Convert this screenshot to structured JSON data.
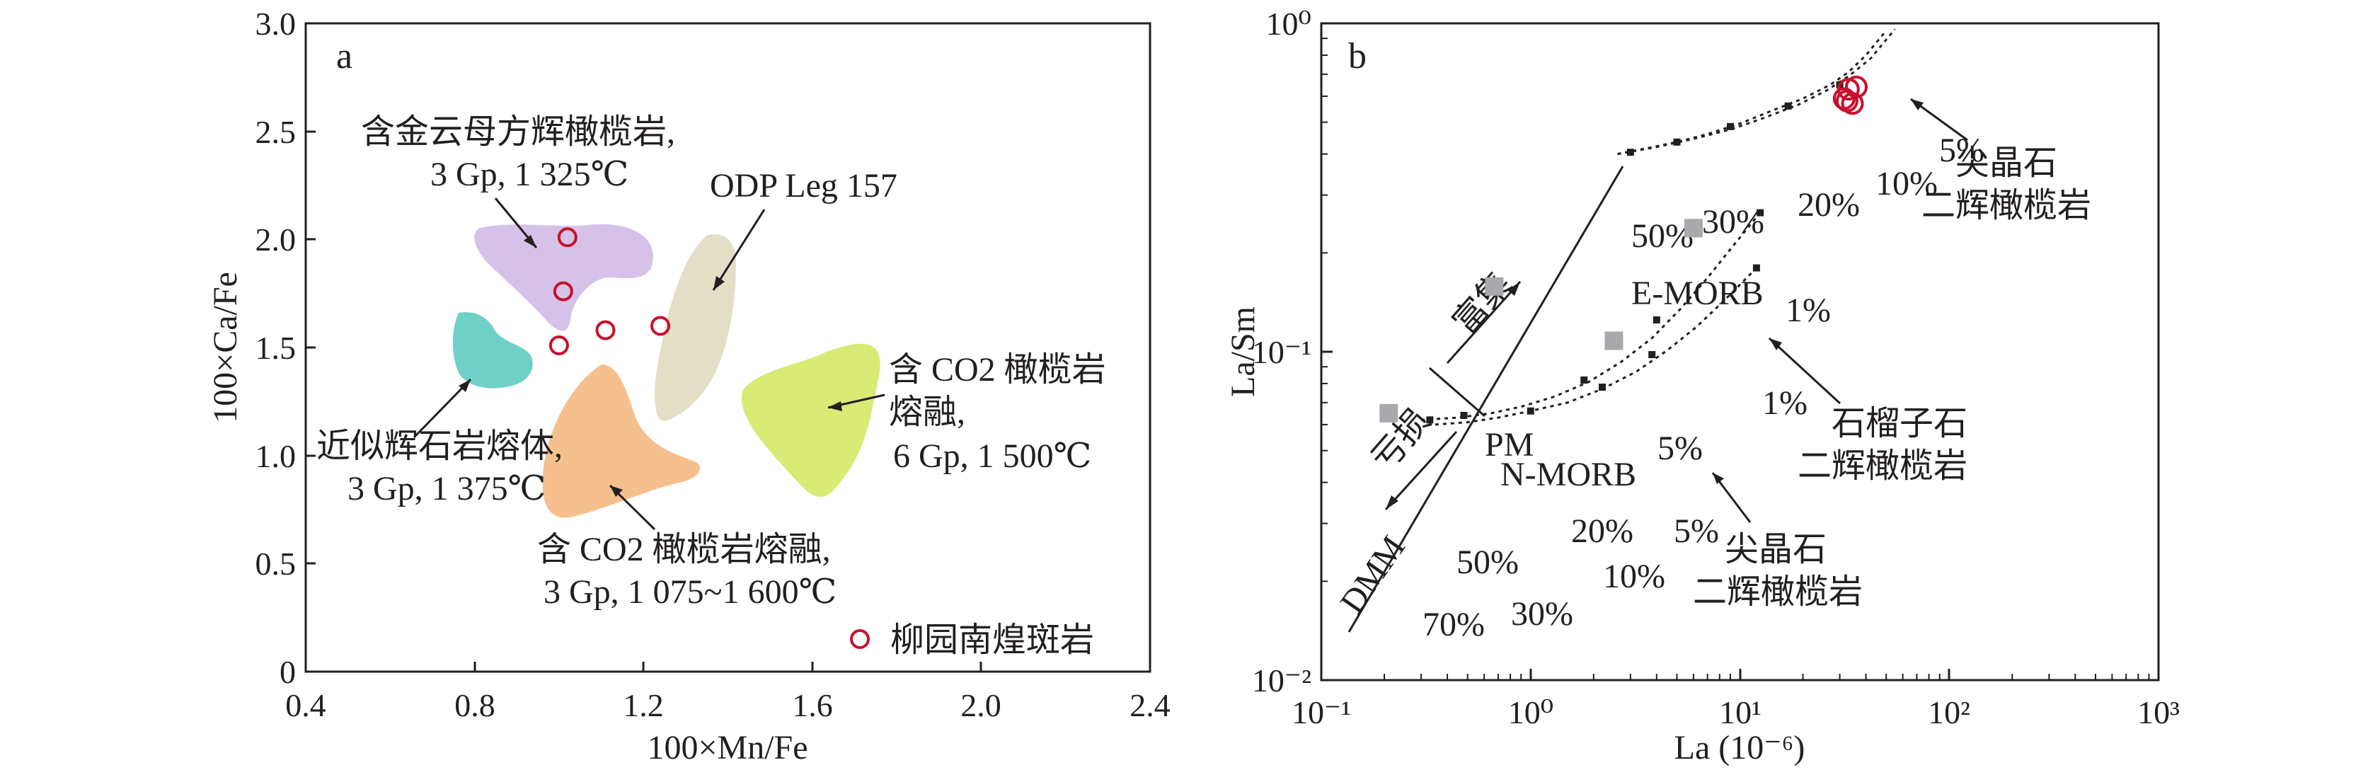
{
  "chart_data": [
    {
      "type": "scatter",
      "panel_label": "a",
      "xlabel": "100×Mn/Fe",
      "ylabel": "100×Ca/Fe",
      "xlim": [
        0.4,
        2.4
      ],
      "ylim": [
        0,
        3.0
      ],
      "x_ticks": [
        "0.4",
        "0.8",
        "1.2",
        "1.6",
        "2.0",
        "2.4"
      ],
      "y_ticks": [
        "0",
        "0.5",
        "1.0",
        "1.5",
        "2.0",
        "2.5",
        "3.0"
      ],
      "grid": false,
      "legend": {
        "label": "柳园南煌斑岩",
        "marker": "open-circle",
        "color": "#c8102e",
        "placement": "bottom-right"
      },
      "series": [
        {
          "name": "柳园南煌斑岩",
          "points": [
            [
              1.02,
              2.01
            ],
            [
              1.01,
              1.76
            ],
            [
              1.11,
              1.58
            ],
            [
              1.24,
              1.6
            ],
            [
              1.0,
              1.51
            ]
          ]
        }
      ],
      "fields": [
        {
          "label_lines": [
            "含金云母方辉橄榄岩,",
            "3 Gp, 1 325℃"
          ],
          "color": "#d6c2e8"
        },
        {
          "label_lines": [
            "ODP Leg 157"
          ],
          "color": "#e3dfc7"
        },
        {
          "label_lines": [
            "近似辉石岩熔体,",
            "3 Gp, 1 375℃"
          ],
          "color": "#6fd0c8"
        },
        {
          "label_lines": [
            "含 CO2 橄榄岩熔融,",
            "3 Gp, 1 075~1 600℃"
          ],
          "color": "#f6c08e"
        },
        {
          "label_lines": [
            "含 CO2 橄榄岩",
            "熔融,",
            "6 Gp, 1 500℃"
          ],
          "color": "#d9ea75"
        }
      ]
    },
    {
      "type": "line",
      "panel_label": "b",
      "xlabel": "La (10⁻⁶)",
      "ylabel": "La/Sm",
      "xscale": "log",
      "yscale": "log",
      "xlim": [
        0.1,
        1000
      ],
      "ylim": [
        0.01,
        1
      ],
      "x_ticks": [
        "10⁻¹",
        "10⁰",
        "10¹",
        "10²",
        "10³"
      ],
      "y_ticks": [
        "10⁻²",
        "10⁻¹",
        "10⁰"
      ],
      "grid": false,
      "reference_points": [
        {
          "label": "DMM",
          "x": 0.21,
          "y": 0.065
        },
        {
          "label": "PM",
          "x": 0.67,
          "y": 0.158
        },
        {
          "label": "N-MORB",
          "x": 2.5,
          "y": 0.108
        },
        {
          "label": "E-MORB",
          "x": 6.0,
          "y": 0.238
        }
      ],
      "samples": {
        "marker": "open-circle",
        "color": "#c8102e",
        "points": [
          [
            31.5,
            0.59
          ],
          [
            33.0,
            0.63
          ],
          [
            34.5,
            0.57
          ],
          [
            36.0,
            0.64
          ],
          [
            32.5,
            0.58
          ]
        ]
      },
      "melting_curves": [
        {
          "name": "尖晶石二辉橄榄岩 (upper)",
          "x": [
            2.6,
            3.5,
            5,
            7,
            10,
            14,
            20,
            27,
            33,
            40,
            50
          ],
          "y": [
            0.4,
            0.415,
            0.435,
            0.46,
            0.495,
            0.54,
            0.59,
            0.65,
            0.71,
            0.8,
            0.95
          ],
          "ticks": [
            [
              "50%",
              3.0,
              0.405
            ],
            [
              "30%",
              5.0,
              0.435
            ],
            [
              "20%",
              9.0,
              0.485
            ],
            [
              "10%",
              17.0,
              0.56
            ],
            [
              "5%",
              30.0,
              0.65
            ]
          ]
        },
        {
          "name": "尖晶石二辉橄榄岩 (upper, parallel)",
          "x": [
            2.6,
            4,
            6,
            9,
            13,
            19,
            26,
            33,
            42,
            55
          ],
          "y": [
            0.4,
            0.42,
            0.445,
            0.475,
            0.515,
            0.565,
            0.625,
            0.69,
            0.78,
            0.96
          ]
        },
        {
          "name": "石榴子石二辉橄榄岩",
          "x": [
            0.3,
            0.45,
            0.65,
            0.9,
            1.3,
            1.9,
            2.7,
            3.8,
            5.2,
            7.0,
            9.0,
            11.0,
            12.5
          ],
          "y": [
            0.062,
            0.063,
            0.065,
            0.068,
            0.073,
            0.081,
            0.093,
            0.11,
            0.135,
            0.168,
            0.205,
            0.24,
            0.265
          ],
          "ticks": [
            [
              "70%",
              0.33,
              0.062
            ],
            [
              "50%",
              0.48,
              0.064
            ],
            [
              "20%",
              1.8,
              0.082
            ],
            [
              "5%",
              4.0,
              0.125
            ],
            [
              "1%",
              12.5,
              0.265
            ]
          ]
        },
        {
          "name": "尖晶石二辉橄榄岩 (lower)",
          "x": [
            0.35,
            0.5,
            0.7,
            1.0,
            1.5,
            2.2,
            3.2,
            4.5,
            6.2,
            8.2,
            10.5,
            12.0
          ],
          "y": [
            0.06,
            0.061,
            0.063,
            0.066,
            0.07,
            0.077,
            0.087,
            0.101,
            0.119,
            0.141,
            0.165,
            0.18
          ],
          "ticks": [
            [
              "30%",
              1.0,
              0.066
            ],
            [
              "10%",
              2.2,
              0.078
            ],
            [
              "5%",
              3.8,
              0.098
            ],
            [
              "1%",
              12.0,
              0.18
            ]
          ]
        }
      ],
      "labels": {
        "enriched": "富集",
        "depleted": "亏损",
        "pct": [
          "50%",
          "30%",
          "20%",
          "10%",
          "5%",
          "1%",
          "1%",
          "5%",
          "20%",
          "50%",
          "70%",
          "30%",
          "10%",
          "5%"
        ],
        "upper_curve": [
          "尖晶石",
          "二辉橄榄岩"
        ],
        "garnet_curve": [
          "石榴子石",
          "二辉橄榄岩"
        ],
        "lower_curve": [
          "尖晶石",
          "二辉橄榄岩"
        ]
      }
    }
  ]
}
